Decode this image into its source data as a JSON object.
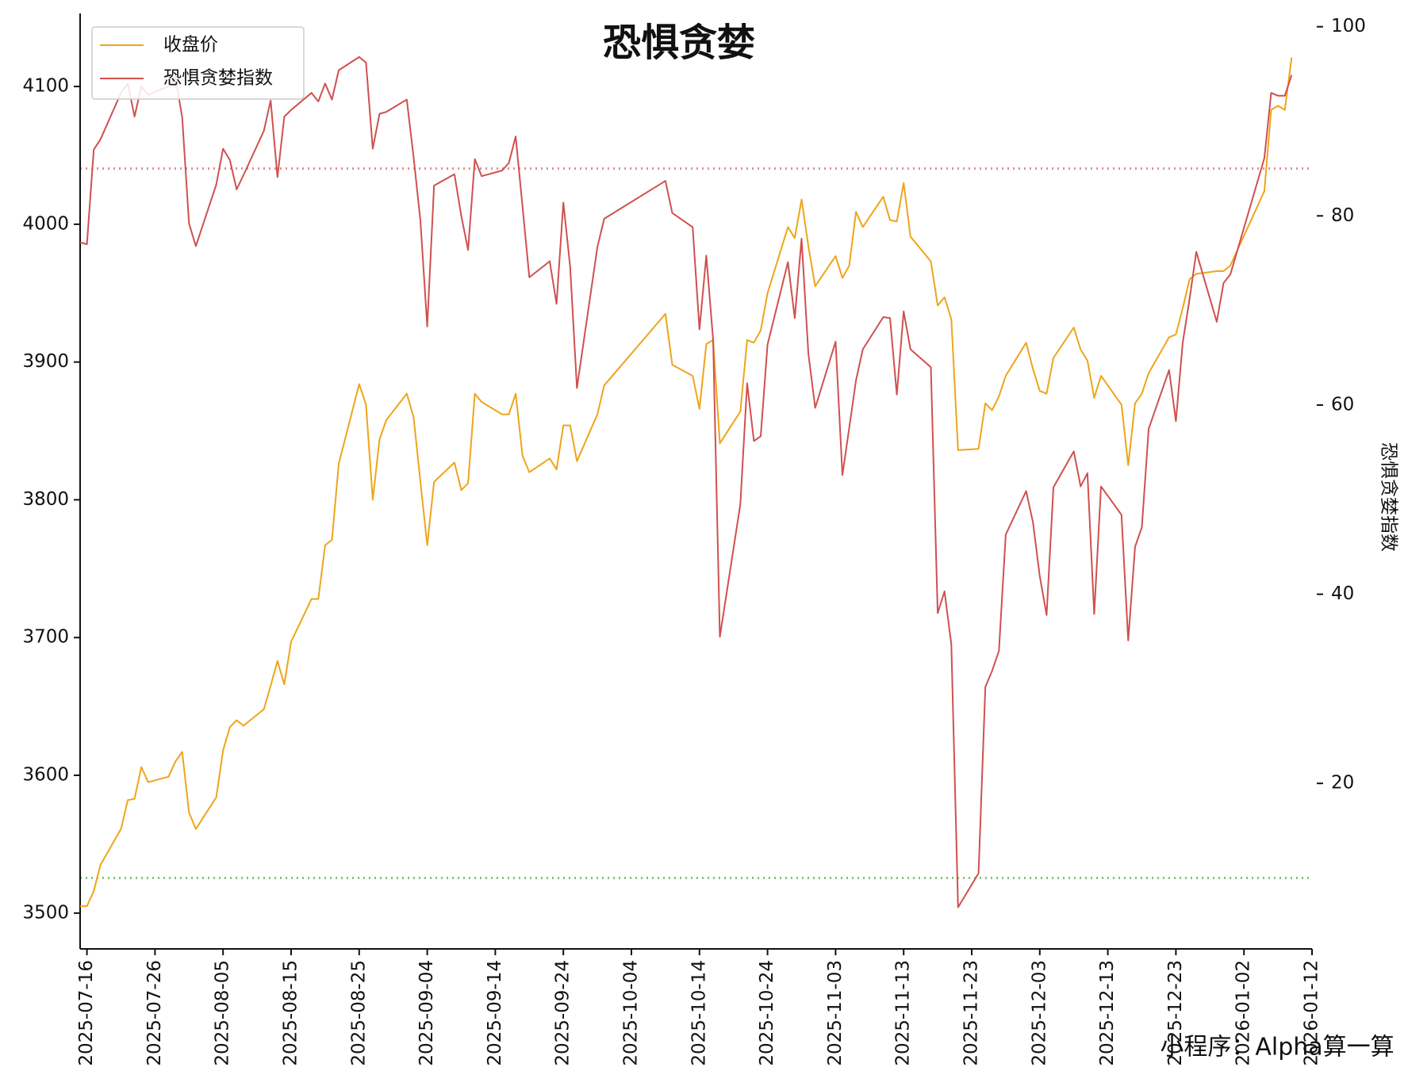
{
  "chart_data": {
    "type": "line",
    "title": "恐惧贪婪",
    "y2label": "恐惧贪婪指数",
    "watermark": "小程序：Alpha算一算",
    "legend": "upper left",
    "x": [
      "2025-07-15",
      "2025-07-16",
      "2025-07-17",
      "2025-07-18",
      "2025-07-21",
      "2025-07-22",
      "2025-07-23",
      "2025-07-24",
      "2025-07-25",
      "2025-07-28",
      "2025-07-29",
      "2025-07-30",
      "2025-07-31",
      "2025-08-01",
      "2025-08-04",
      "2025-08-05",
      "2025-08-06",
      "2025-08-07",
      "2025-08-08",
      "2025-08-11",
      "2025-08-12",
      "2025-08-13",
      "2025-08-14",
      "2025-08-15",
      "2025-08-18",
      "2025-08-19",
      "2025-08-20",
      "2025-08-21",
      "2025-08-22",
      "2025-08-25",
      "2025-08-26",
      "2025-08-27",
      "2025-08-28",
      "2025-08-29",
      "2025-09-01",
      "2025-09-02",
      "2025-09-03",
      "2025-09-04",
      "2025-09-05",
      "2025-09-08",
      "2025-09-09",
      "2025-09-10",
      "2025-09-11",
      "2025-09-12",
      "2025-09-15",
      "2025-09-16",
      "2025-09-17",
      "2025-09-18",
      "2025-09-19",
      "2025-09-22",
      "2025-09-23",
      "2025-09-24",
      "2025-09-25",
      "2025-09-26",
      "2025-09-29",
      "2025-09-30",
      "2025-10-09",
      "2025-10-10",
      "2025-10-13",
      "2025-10-14",
      "2025-10-15",
      "2025-10-16",
      "2025-10-17",
      "2025-10-20",
      "2025-10-21",
      "2025-10-22",
      "2025-10-23",
      "2025-10-24",
      "2025-10-27",
      "2025-10-28",
      "2025-10-29",
      "2025-10-30",
      "2025-10-31",
      "2025-11-03",
      "2025-11-04",
      "2025-11-05",
      "2025-11-06",
      "2025-11-07",
      "2025-11-10",
      "2025-11-11",
      "2025-11-12",
      "2025-11-13",
      "2025-11-14",
      "2025-11-17",
      "2025-11-18",
      "2025-11-19",
      "2025-11-20",
      "2025-11-21",
      "2025-11-24",
      "2025-11-25",
      "2025-11-26",
      "2025-11-27",
      "2025-11-28",
      "2025-12-01",
      "2025-12-02",
      "2025-12-03",
      "2025-12-04",
      "2025-12-05",
      "2025-12-08",
      "2025-12-09",
      "2025-12-10",
      "2025-12-11",
      "2025-12-12",
      "2025-12-15",
      "2025-12-16",
      "2025-12-17",
      "2025-12-18",
      "2025-12-19",
      "2025-12-22",
      "2025-12-23",
      "2025-12-24",
      "2025-12-25",
      "2025-12-26",
      "2025-12-29",
      "2025-12-30",
      "2025-12-31",
      "2026-01-05",
      "2026-01-06",
      "2026-01-07",
      "2026-01-08",
      "2026-01-09"
    ],
    "series": [
      {
        "name": "收盘价",
        "color": "#eea51a",
        "values": [
          3505,
          3505,
          3516,
          3535,
          3561,
          3582,
          3583,
          3606,
          3595,
          3599,
          3610,
          3617,
          3573,
          3561,
          3584,
          3618,
          3635,
          3640,
          3636,
          3648,
          3665,
          3683,
          3666,
          3697,
          3728,
          3728,
          3767,
          3771,
          3826,
          3884,
          3869,
          3800,
          3844,
          3858,
          3877,
          3860,
          3813,
          3767,
          3813,
          3827,
          3807,
          3812,
          3877,
          3871,
          3862,
          3862,
          3877,
          3832,
          3820,
          3830,
          3822,
          3854,
          3854,
          3828,
          3862,
          3883,
          3935,
          3898,
          3890,
          3866,
          3913,
          3916,
          3841,
          3864,
          3916,
          3914,
          3923,
          3950,
          3998,
          3990,
          4018,
          3984,
          3955,
          3977,
          3961,
          3970,
          4009,
          3998,
          4020,
          4003,
          4002,
          4030,
          3991,
          3973,
          3941,
          3947,
          3931,
          3836,
          3837,
          3870,
          3865,
          3875,
          3890,
          3914,
          3895,
          3879,
          3877,
          3903,
          3925,
          3909,
          3901,
          3874,
          3890,
          3869,
          3825,
          3870,
          3877,
          3892,
          3918,
          3920,
          3939,
          3960,
          3964,
          3966,
          3966,
          3970,
          4024,
          4083,
          4086,
          4083,
          4121
        ]
      },
      {
        "name": "恐惧贪婪指数",
        "color": "#d05050",
        "axis": "y2",
        "values": [
          77.2,
          77.0,
          87.0,
          88.1,
          93.0,
          94.0,
          90.5,
          93.7,
          92.8,
          93.7,
          94.7,
          90.4,
          79.2,
          76.8,
          83.3,
          87.1,
          85.9,
          82.8,
          84.3,
          89.0,
          92.2,
          84.1,
          90.5,
          91.2,
          93.0,
          92.1,
          94.0,
          92.3,
          95.4,
          96.8,
          96.2,
          87.1,
          90.8,
          91.0,
          92.3,
          86.2,
          79.5,
          68.3,
          83.2,
          84.4,
          80.0,
          76.4,
          86.0,
          84.2,
          84.8,
          85.6,
          88.4,
          81.0,
          73.5,
          75.2,
          70.7,
          81.4,
          74.6,
          61.8,
          76.7,
          79.7,
          83.7,
          80.3,
          78.8,
          68.0,
          75.8,
          66.9,
          35.5,
          49.5,
          62.3,
          56.2,
          56.7,
          66.4,
          75.1,
          69.2,
          77.6,
          65.4,
          59.7,
          66.7,
          52.6,
          57.6,
          62.6,
          65.9,
          69.3,
          69.2,
          61.1,
          69.9,
          65.9,
          64.0,
          38.0,
          40.3,
          34.7,
          6.9,
          10.5,
          30.2,
          31.9,
          34.0,
          46.3,
          50.9,
          47.6,
          41.9,
          37.8,
          51.3,
          55.1,
          51.4,
          52.8,
          37.9,
          51.4,
          48.4,
          35.1,
          45.0,
          47.1,
          57.5,
          63.7,
          58.3,
          66.6,
          71.2,
          76.2,
          68.8,
          72.9,
          73.8,
          86.1,
          93.0,
          92.7,
          92.7,
          94.9
        ]
      }
    ],
    "reference_lines": [
      {
        "value": 85,
        "axis": "y2",
        "color": "#e88a8a"
      },
      {
        "value": 10,
        "axis": "y2",
        "color": "#80c080"
      }
    ],
    "xlim": [
      "2025-07-15",
      "2026-01-12"
    ],
    "xticks": [
      "2025-07-16",
      "2025-07-26",
      "2025-08-05",
      "2025-08-15",
      "2025-08-25",
      "2025-09-04",
      "2025-09-14",
      "2025-09-24",
      "2025-10-04",
      "2025-10-14",
      "2025-10-24",
      "2025-11-03",
      "2025-11-13",
      "2025-11-23",
      "2025-12-03",
      "2025-12-13",
      "2025-12-23",
      "2026-01-02",
      "2026-01-12"
    ],
    "ylim": [
      3474,
      4153
    ],
    "yticks": [
      3500,
      3600,
      3700,
      3800,
      3900,
      4000,
      4100
    ],
    "y2lim": [
      2.5,
      101.4
    ],
    "y2ticks": [
      20,
      40,
      60,
      80,
      100
    ]
  }
}
